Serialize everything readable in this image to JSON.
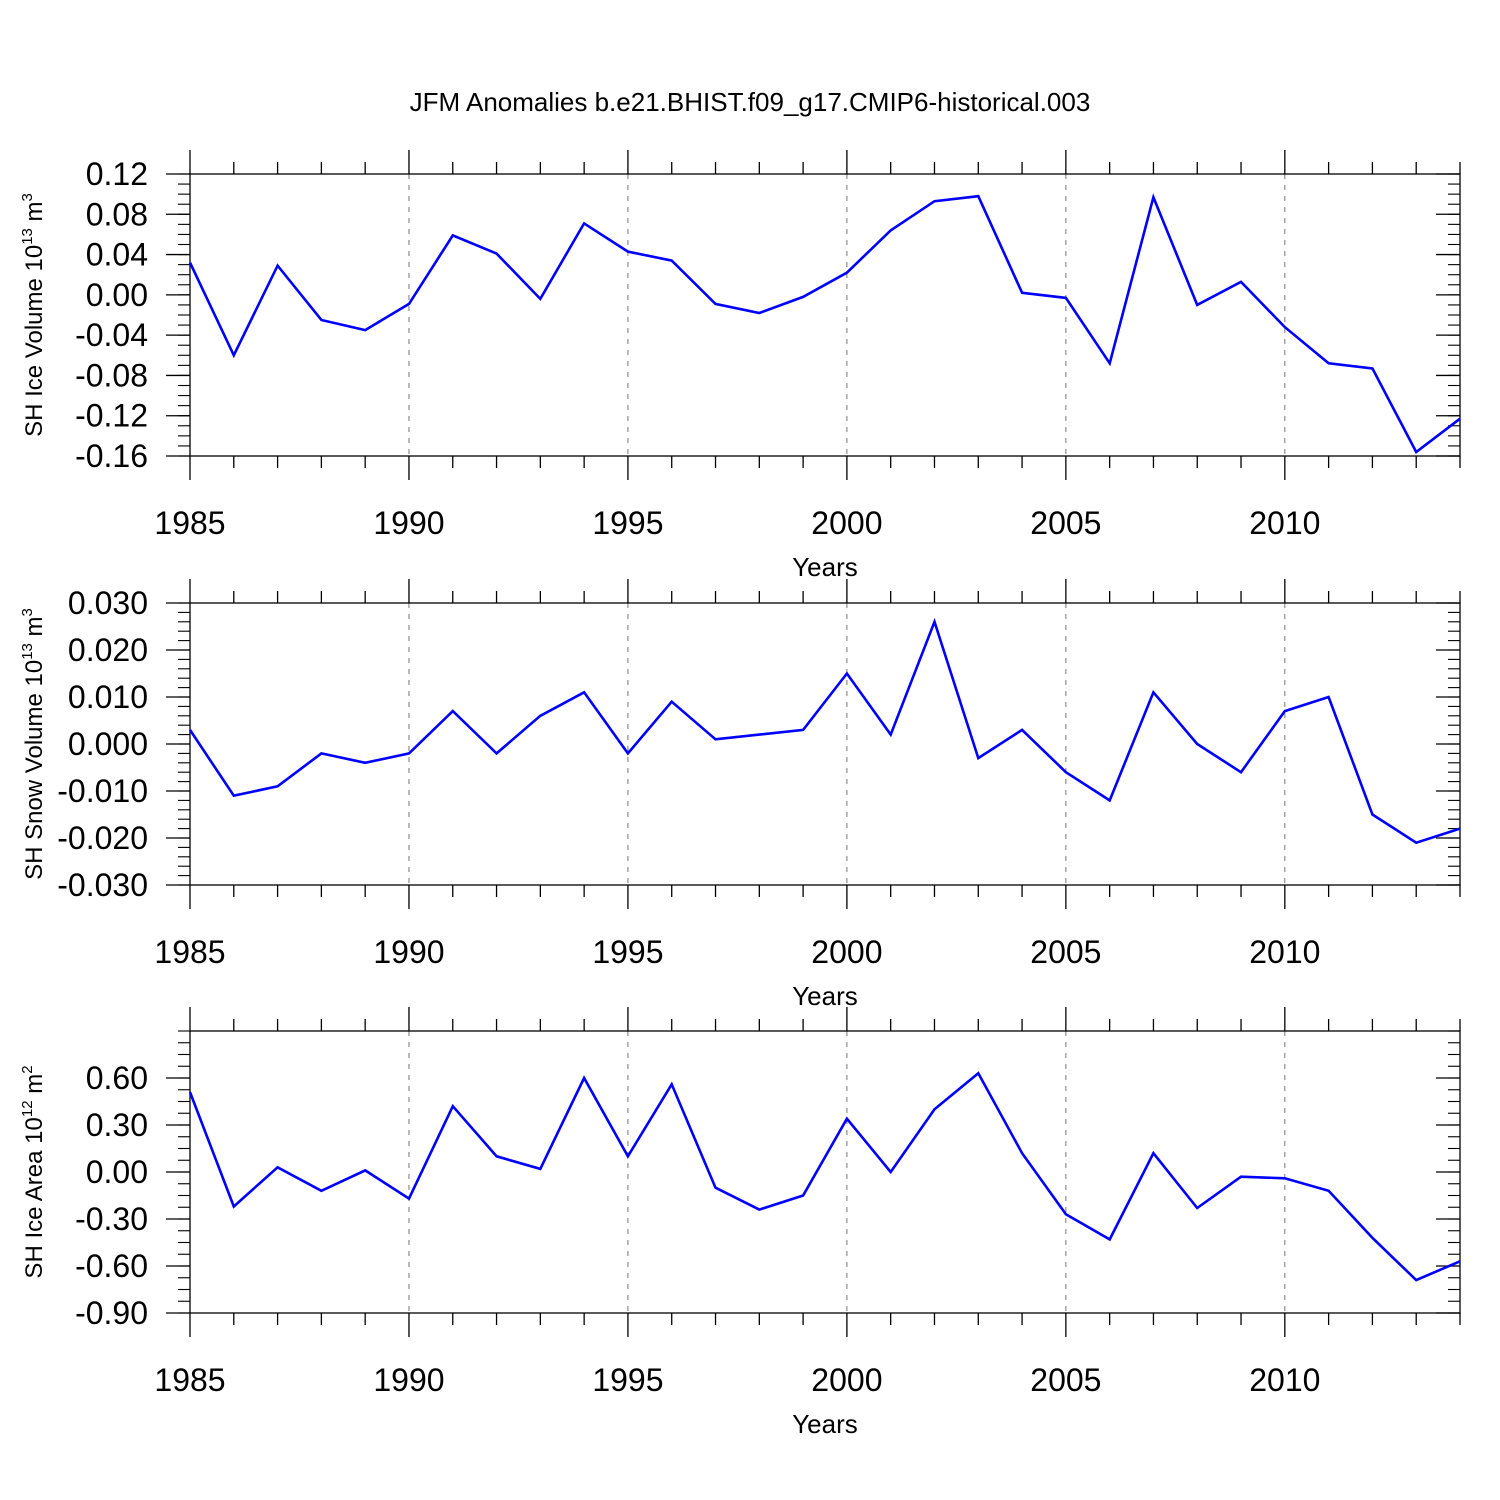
{
  "title": "JFM Anomalies b.e21.BHIST.f09_g17.CMIP6-historical.003",
  "colors": {
    "line": "#0000ff",
    "axis": "#000000",
    "grid": "#777777"
  },
  "chart_data": [
    {
      "type": "line",
      "ylabel_main": "SH Ice Volume 10",
      "ylabel_sup1": "13",
      "ylabel_unit": " m",
      "ylabel_sup2": "3",
      "xlabel": "Years",
      "xlim": [
        1985,
        2014
      ],
      "ylim": [
        -0.16,
        0.12
      ],
      "yticks": [
        -0.16,
        -0.12,
        -0.08,
        -0.04,
        0.0,
        0.04,
        0.08,
        0.12
      ],
      "ytick_labels": [
        "-0.16",
        "-0.12",
        "-0.08",
        "-0.04",
        "0.00",
        "0.04",
        "0.08",
        "0.12"
      ],
      "yminor_step": 0.01,
      "xticks": [
        1985,
        1990,
        1995,
        2000,
        2005,
        2010
      ],
      "xtick_labels": [
        "1985",
        "1990",
        "1995",
        "2000",
        "2005",
        "2010"
      ],
      "x": [
        1985,
        1986,
        1987,
        1988,
        1989,
        1990,
        1991,
        1992,
        1993,
        1994,
        1995,
        1996,
        1997,
        1998,
        1999,
        2000,
        2001,
        2002,
        2003,
        2004,
        2005,
        2006,
        2007,
        2008,
        2009,
        2010,
        2011,
        2012,
        2013,
        2014
      ],
      "values": [
        0.032,
        -0.06,
        0.029,
        -0.025,
        -0.035,
        -0.009,
        0.059,
        0.041,
        -0.004,
        0.071,
        0.043,
        0.034,
        -0.009,
        -0.018,
        -0.002,
        0.022,
        0.064,
        0.093,
        0.098,
        0.002,
        -0.003,
        -0.068,
        0.097,
        -0.01,
        0.013,
        -0.032,
        -0.068,
        -0.073,
        -0.156,
        -0.123
      ]
    },
    {
      "type": "line",
      "ylabel_main": "SH Snow Volume 10",
      "ylabel_sup1": "13",
      "ylabel_unit": " m",
      "ylabel_sup2": "3",
      "xlabel": "Years",
      "xlim": [
        1985,
        2014
      ],
      "ylim": [
        -0.03,
        0.03
      ],
      "yticks": [
        -0.03,
        -0.02,
        -0.01,
        0.0,
        0.01,
        0.02,
        0.03
      ],
      "ytick_labels": [
        "-0.030",
        "-0.020",
        "-0.010",
        "0.000",
        "0.010",
        "0.020",
        "0.030"
      ],
      "yminor_step": 0.002,
      "xticks": [
        1985,
        1990,
        1995,
        2000,
        2005,
        2010
      ],
      "xtick_labels": [
        "1985",
        "1990",
        "1995",
        "2000",
        "2005",
        "2010"
      ],
      "x": [
        1985,
        1986,
        1987,
        1988,
        1989,
        1990,
        1991,
        1992,
        1993,
        1994,
        1995,
        1996,
        1997,
        1998,
        1999,
        2000,
        2001,
        2002,
        2003,
        2004,
        2005,
        2006,
        2007,
        2008,
        2009,
        2010,
        2011,
        2012,
        2013,
        2014
      ],
      "values": [
        0.003,
        -0.011,
        -0.009,
        -0.002,
        -0.004,
        -0.002,
        0.007,
        -0.002,
        0.006,
        0.011,
        -0.002,
        0.009,
        0.001,
        0.002,
        0.003,
        0.015,
        0.002,
        0.026,
        -0.003,
        0.003,
        -0.006,
        -0.012,
        0.011,
        0.0,
        -0.006,
        0.007,
        0.01,
        -0.015,
        -0.021,
        -0.018
      ]
    },
    {
      "type": "line",
      "ylabel_main": "SH Ice Area 10",
      "ylabel_sup1": "12",
      "ylabel_unit": " m",
      "ylabel_sup2": "2",
      "xlabel": "Years",
      "xlim": [
        1985,
        2014
      ],
      "ylim": [
        -0.9,
        0.9
      ],
      "yticks": [
        -0.9,
        -0.6,
        -0.3,
        0.0,
        0.3,
        0.6
      ],
      "ytick_labels": [
        "-0.90",
        "-0.60",
        "-0.30",
        "0.00",
        "0.30",
        "0.60"
      ],
      "yminor_step": 0.075,
      "xticks": [
        1985,
        1990,
        1995,
        2000,
        2005,
        2010
      ],
      "xtick_labels": [
        "1985",
        "1990",
        "1995",
        "2000",
        "2005",
        "2010"
      ],
      "x": [
        1985,
        1986,
        1987,
        1988,
        1989,
        1990,
        1991,
        1992,
        1993,
        1994,
        1995,
        1996,
        1997,
        1998,
        1999,
        2000,
        2001,
        2002,
        2003,
        2004,
        2005,
        2006,
        2007,
        2008,
        2009,
        2010,
        2011,
        2012,
        2013,
        2014
      ],
      "values": [
        0.51,
        -0.22,
        0.03,
        -0.12,
        0.01,
        -0.17,
        0.42,
        0.1,
        0.02,
        0.6,
        0.1,
        0.56,
        -0.1,
        -0.24,
        -0.15,
        0.34,
        0.0,
        0.4,
        0.63,
        0.12,
        -0.27,
        -0.43,
        0.12,
        -0.23,
        -0.03,
        -0.04,
        -0.12,
        -0.42,
        -0.69,
        -0.57
      ]
    }
  ]
}
